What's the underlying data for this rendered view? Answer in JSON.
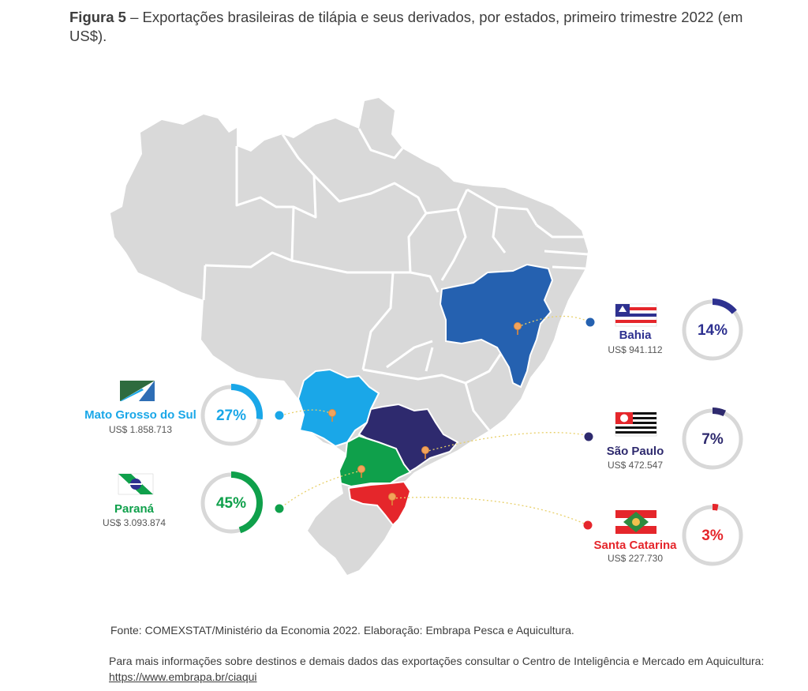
{
  "caption": {
    "figure_label": "Figura 5",
    "text": " – Exportações brasileiras de tilápia e seus derivados, por estados, primeiro trimestre 2022 (em US$)."
  },
  "colors": {
    "land": "#d9d9d9",
    "border": "#ffffff",
    "bahia": "#2561b0",
    "mato_grosso_do_sul": "#1aa7e8",
    "sao_paulo": "#2e2a6e",
    "parana": "#0fa04b",
    "santa_catarina": "#e5262b",
    "bahia_text": "#2e3190",
    "track": "#d8d8d8",
    "pin": "#f2a35c"
  },
  "states": {
    "bahia": {
      "name": "Bahia",
      "value": "US$ 941.112",
      "percent_label": "14%",
      "percent": 14
    },
    "sao_paulo": {
      "name": "São Paulo",
      "value": "US$ 472.547",
      "percent_label": "7%",
      "percent": 7
    },
    "santa_catarina": {
      "name": "Santa Catarina",
      "value": "US$ 227.730",
      "percent_label": "3%",
      "percent": 3
    },
    "mato_grosso_do_sul": {
      "name": "Mato Grosso do Sul",
      "value": "US$ 1.858.713",
      "percent_label": "27%",
      "percent": 27
    },
    "parana": {
      "name": "Paraná",
      "value": "US$ 3.093.874",
      "percent_label": "45%",
      "percent": 45
    }
  },
  "source": "Fonte: COMEXSTAT/Ministério da Economia 2022.  Elaboração: Embrapa Pesca e Aquicultura.",
  "more_info": {
    "text": "Para mais informações sobre destinos e demais dados das exportações consultar o  Centro de Inteligência e Mercado em Aquicultura:",
    "link": "https://www.embrapa.br/ciaqui"
  }
}
